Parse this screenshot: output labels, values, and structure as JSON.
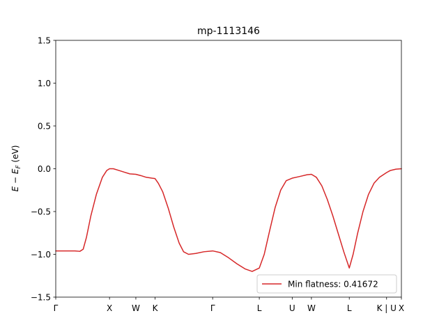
{
  "chart_data": {
    "type": "line",
    "title": "mp-1113146",
    "ylabel": "E − E_F (eV)",
    "ylabel_parts": {
      "e": "E",
      "minus": " − ",
      "ef": "E",
      "sub": "F",
      "unit": " (eV)"
    },
    "xlabel": "",
    "xlim": [
      0,
      6.3
    ],
    "ylim": [
      -1.5,
      1.5
    ],
    "yticks": [
      {
        "value": 1.5,
        "label": "1.5"
      },
      {
        "value": 1.0,
        "label": "1.0"
      },
      {
        "value": 0.5,
        "label": "0.5"
      },
      {
        "value": 0.0,
        "label": "0.0"
      },
      {
        "value": -0.5,
        "label": "−0.5"
      },
      {
        "value": -1.0,
        "label": "−1.0"
      },
      {
        "value": -1.5,
        "label": "−1.5"
      }
    ],
    "xticks": [
      {
        "value": 0.0,
        "label": "Γ"
      },
      {
        "value": 0.98,
        "label": "X"
      },
      {
        "value": 1.46,
        "label": "W"
      },
      {
        "value": 1.81,
        "label": "K"
      },
      {
        "value": 2.86,
        "label": "Γ"
      },
      {
        "value": 3.71,
        "label": "L"
      },
      {
        "value": 4.31,
        "label": "U"
      },
      {
        "value": 4.66,
        "label": "W"
      },
      {
        "value": 5.35,
        "label": "L"
      },
      {
        "value": 6.03,
        "label": "K | U"
      },
      {
        "value": 6.3,
        "label": "X"
      }
    ],
    "legend": {
      "position": "lower-right",
      "label": "Min flatness: 0.41672"
    },
    "grid": false,
    "color": "#d62728",
    "series": [
      {
        "x": [
          0.0,
          0.2,
          0.35,
          0.44,
          0.5,
          0.56,
          0.64,
          0.74,
          0.85,
          0.93,
          0.98,
          1.05,
          1.15,
          1.25,
          1.35,
          1.46,
          1.55,
          1.65,
          1.75,
          1.81,
          1.87,
          1.95,
          2.05,
          2.15,
          2.25,
          2.33,
          2.42,
          2.55,
          2.7,
          2.86,
          3.0,
          3.15,
          3.3,
          3.45,
          3.58,
          3.71,
          3.8,
          3.9,
          4.0,
          4.1,
          4.2,
          4.31,
          4.45,
          4.58,
          4.66,
          4.75,
          4.85,
          4.95,
          5.05,
          5.15,
          5.25,
          5.35,
          5.42,
          5.5,
          5.6,
          5.7,
          5.8,
          5.9,
          6.03,
          6.1,
          6.2,
          6.3
        ],
        "y": [
          -0.96,
          -0.96,
          -0.96,
          -0.965,
          -0.94,
          -0.8,
          -0.55,
          -0.3,
          -0.1,
          -0.02,
          0.0,
          0.0,
          -0.02,
          -0.04,
          -0.06,
          -0.065,
          -0.08,
          -0.1,
          -0.11,
          -0.115,
          -0.17,
          -0.27,
          -0.46,
          -0.68,
          -0.87,
          -0.97,
          -1.0,
          -0.99,
          -0.97,
          -0.96,
          -0.98,
          -1.04,
          -1.11,
          -1.17,
          -1.2,
          -1.16,
          -1.0,
          -0.72,
          -0.45,
          -0.25,
          -0.14,
          -0.11,
          -0.09,
          -0.07,
          -0.065,
          -0.1,
          -0.2,
          -0.36,
          -0.55,
          -0.76,
          -0.97,
          -1.16,
          -1.0,
          -0.76,
          -0.5,
          -0.3,
          -0.17,
          -0.1,
          -0.045,
          -0.02,
          -0.005,
          0.0
        ]
      }
    ]
  }
}
